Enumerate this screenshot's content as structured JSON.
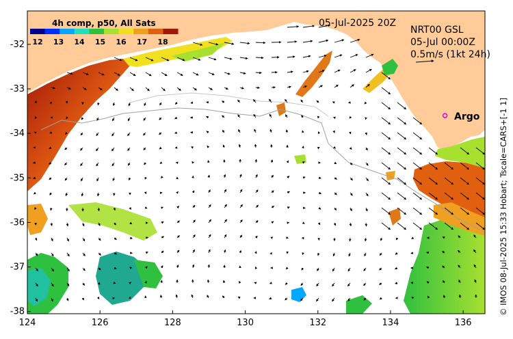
{
  "map": {
    "date_label": "05-Jul-2025 20Z",
    "source_note": "© IMOS 08-Jul-2025 15:33 Hobart; Tscale=CARS+[-1 1]",
    "colorbar": {
      "title": "4h comp, p50, All Sats",
      "ticks": [
        "12",
        "13",
        "14",
        "15",
        "16",
        "17",
        "18"
      ],
      "colors": [
        "#00008f",
        "#0030ff",
        "#00a8ff",
        "#20e0c0",
        "#30c040",
        "#a8e030",
        "#f0e020",
        "#f0a020",
        "#e06010",
        "#a01808"
      ]
    },
    "current_info": {
      "line1": "NRT00 GSL",
      "line2": "05-Jul 00:00Z",
      "line3": "0.5m/s (1kt 24h)"
    },
    "argo": {
      "label": "Argo",
      "lon": 135.5,
      "lat": -33.6,
      "color": "#e000e0"
    },
    "land_color": "#ffcc99",
    "axes": {
      "x_ticks": [
        "124",
        "126",
        "128",
        "130",
        "132",
        "134",
        "136"
      ],
      "y_ticks": [
        "-32",
        "-33",
        "-34",
        "-35",
        "-36",
        "-37",
        "-38"
      ],
      "xlim": [
        124,
        136.6
      ],
      "ylim": [
        -38.05,
        -31.25
      ]
    }
  }
}
